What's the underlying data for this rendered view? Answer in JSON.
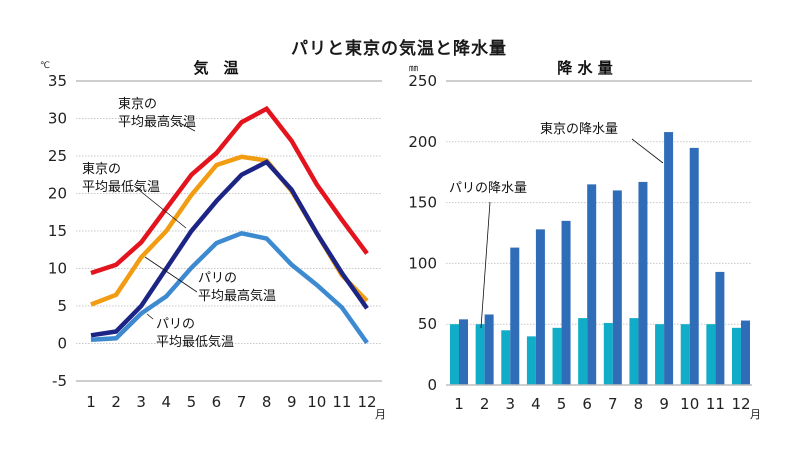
{
  "title": "パリと東京の気温と降水量",
  "chart_data": [
    {
      "type": "line",
      "title": "気　温",
      "ylabel": "℃",
      "xlabel": "月",
      "ylim": [
        -5,
        35
      ],
      "yticks": [
        "35",
        "30",
        "25",
        "20",
        "15",
        "10",
        "5",
        "0",
        "-5"
      ],
      "ytick_values": [
        35,
        30,
        25,
        20,
        15,
        10,
        5,
        0,
        -5
      ],
      "categories": [
        "1",
        "2",
        "3",
        "4",
        "5",
        "6",
        "7",
        "8",
        "9",
        "10",
        "11",
        "12"
      ],
      "grid": true,
      "series": [
        {
          "name": "東京の平均最高気温",
          "label_lines": [
            "東京の",
            "平均最高気温"
          ],
          "color": "#e3141e",
          "values": [
            9.4,
            10.5,
            13.5,
            18.0,
            22.5,
            25.4,
            29.5,
            31.3,
            27.0,
            21.2,
            16.5,
            12.0
          ]
        },
        {
          "name": "東京の平均最低気温",
          "label_lines": [
            "東京の",
            "平均最低気温"
          ],
          "color": "#1c2585",
          "values": [
            1.1,
            1.6,
            5.0,
            10.0,
            15.0,
            19.0,
            22.5,
            24.2,
            20.5,
            14.7,
            9.4,
            4.7
          ]
        },
        {
          "name": "パリの平均最高気温",
          "label_lines": [
            "パリの",
            "平均最高気温"
          ],
          "color": "#f29c11",
          "values": [
            5.2,
            6.5,
            11.5,
            15.0,
            19.8,
            23.8,
            24.9,
            24.4,
            20.3,
            14.7,
            9.1,
            5.7
          ]
        },
        {
          "name": "パリの平均最低気温",
          "label_lines": [
            "パリの",
            "平均最低気温"
          ],
          "color": "#3d8ad1",
          "values": [
            0.5,
            0.7,
            4.0,
            6.3,
            10.1,
            13.4,
            14.7,
            14.0,
            10.5,
            7.8,
            4.8,
            0.1
          ]
        }
      ]
    },
    {
      "type": "bar",
      "title": "降 水 量",
      "ylabel": "㎜",
      "xlabel": "月",
      "ylim": [
        0,
        250
      ],
      "yticks": [
        "250",
        "200",
        "150",
        "100",
        "50",
        "0"
      ],
      "ytick_values": [
        250,
        200,
        150,
        100,
        50,
        0
      ],
      "categories": [
        "1",
        "2",
        "3",
        "4",
        "5",
        "6",
        "7",
        "8",
        "9",
        "10",
        "11",
        "12"
      ],
      "grid": true,
      "series": [
        {
          "name": "パリの降水量",
          "color": "#10acc8",
          "values": [
            50,
            50,
            45,
            40,
            47,
            55,
            51,
            55,
            50,
            50,
            50,
            47
          ]
        },
        {
          "name": "東京の降水量",
          "color": "#2f6db8",
          "values": [
            54,
            58,
            113,
            128,
            135,
            165,
            160,
            167,
            208,
            195,
            93,
            53
          ]
        }
      ]
    }
  ]
}
